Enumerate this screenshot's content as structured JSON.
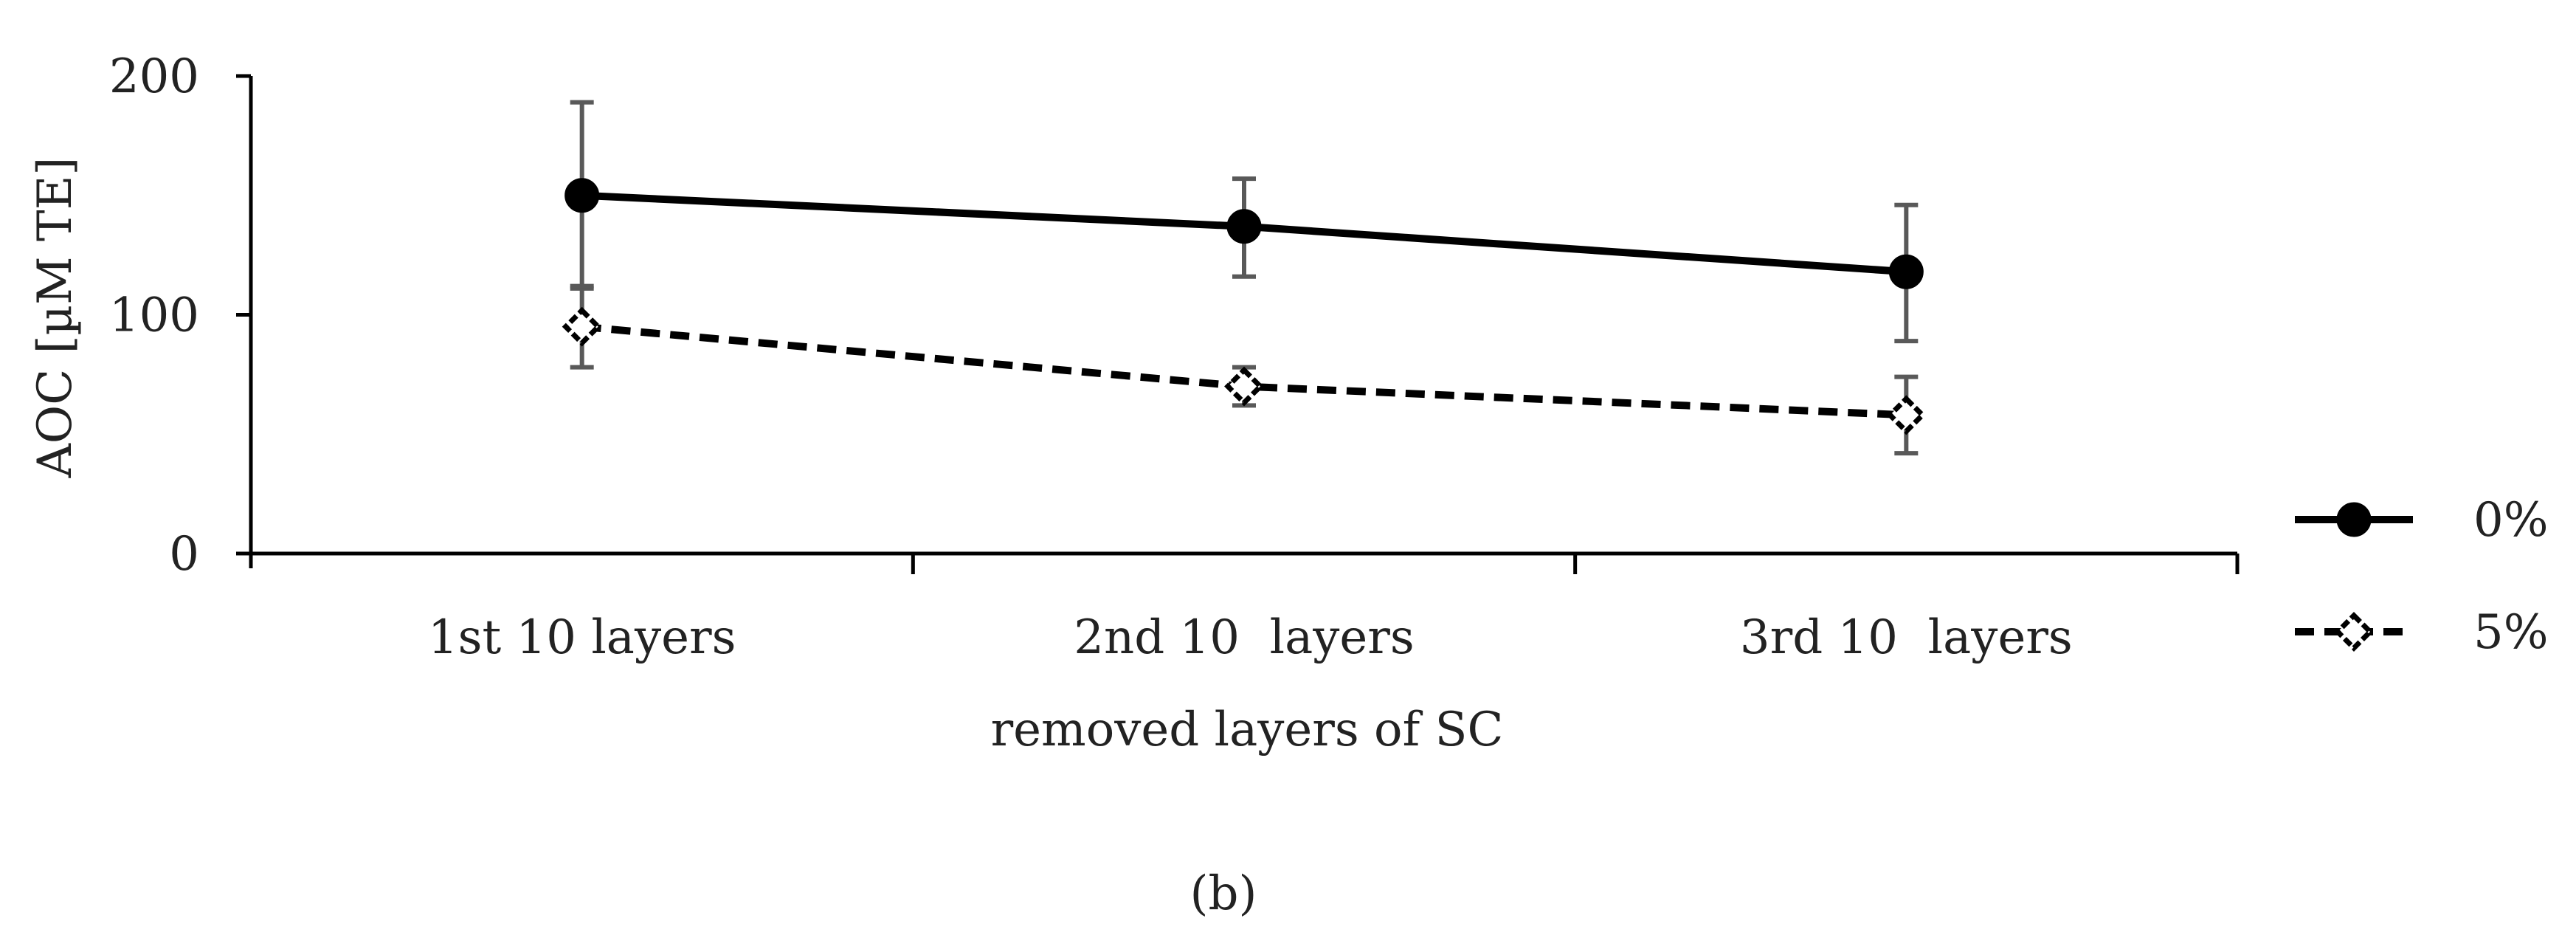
{
  "chart_data": {
    "type": "line",
    "categories": [
      "1st 10 layers",
      "2nd 10  layers",
      "3rd 10  layers"
    ],
    "series": [
      {
        "name": "0%",
        "values": [
          150,
          137,
          118
        ],
        "error_low": [
          111,
          116,
          89
        ],
        "error_high": [
          189,
          157,
          146
        ],
        "marker": "filled-circle",
        "line_style": "solid",
        "color": "#000000"
      },
      {
        "name": "5%",
        "values": [
          95,
          70,
          58
        ],
        "error_low": [
          78,
          62,
          42
        ],
        "error_high": [
          112,
          78,
          74
        ],
        "marker": "open-diamond",
        "line_style": "dashed",
        "color": "#000000"
      }
    ],
    "title": "",
    "xlabel": "removed layers of SC",
    "ylabel": "AOC [µM TE]",
    "ylim": [
      0,
      200
    ],
    "yticks": [
      0,
      100,
      200
    ],
    "grid": false,
    "legend_position": "right",
    "error_bar_color": "#595959"
  },
  "panel_label": "(b)"
}
